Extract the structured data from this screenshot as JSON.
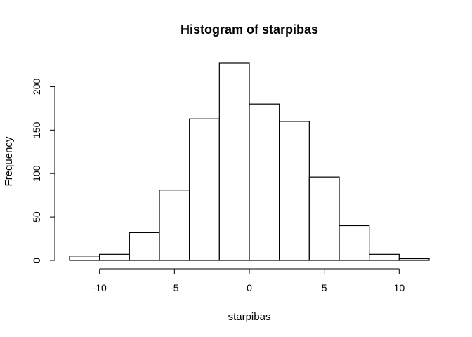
{
  "chart_data": {
    "type": "histogram",
    "title": "Histogram of starpibas",
    "xlabel": "starpibas",
    "ylabel": "Frequency",
    "bin_edges": [
      -12,
      -10,
      -8,
      -6,
      -4,
      -2,
      0,
      2,
      4,
      6,
      8,
      10,
      12
    ],
    "counts": [
      5,
      7,
      32,
      81,
      163,
      227,
      180,
      160,
      96,
      40,
      7,
      2
    ],
    "xlim": [
      -12,
      12
    ],
    "ylim": [
      0,
      227
    ],
    "x_ticks": [
      -10,
      -5,
      0,
      5,
      10
    ],
    "x_tick_labels": [
      "-10",
      "-5",
      "0",
      "5",
      "10"
    ],
    "y_ticks": [
      0,
      50,
      100,
      150,
      200
    ],
    "y_tick_labels": [
      "0",
      "50",
      "100",
      "150",
      "200"
    ],
    "grid": false,
    "legend": "none",
    "bar_fill": "#ffffff",
    "bar_stroke": "#000000"
  }
}
